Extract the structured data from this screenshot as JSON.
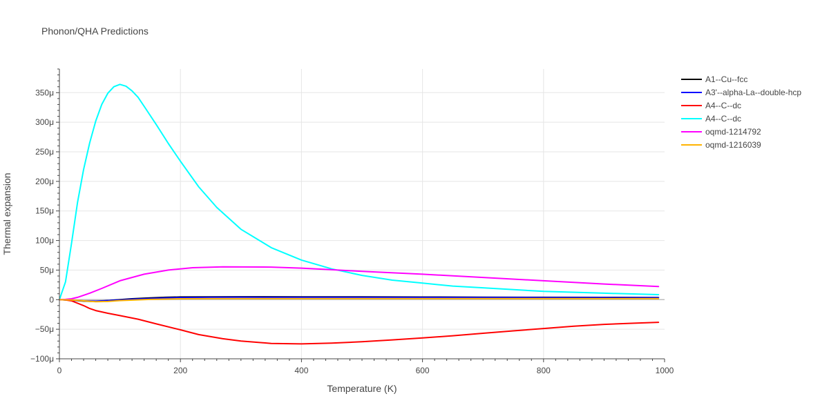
{
  "chart_data": {
    "type": "line",
    "title": "Phonon/QHA Predictions",
    "xlabel": "Temperature (K)",
    "ylabel": "Thermal expansion",
    "xlim": [
      0,
      1000
    ],
    "ylim": [
      -0.0001,
      0.00039
    ],
    "x_ticks": [
      0,
      200,
      400,
      600,
      800,
      1000
    ],
    "x_tick_labels": [
      "0",
      "200",
      "400",
      "600",
      "800",
      "1000"
    ],
    "y_ticks": [
      -0.0001,
      -5e-05,
      0,
      5e-05,
      0.0001,
      0.00015,
      0.0002,
      0.00025,
      0.0003,
      0.00035
    ],
    "y_tick_labels": [
      "−100μ",
      "−50μ",
      "0",
      "50μ",
      "100μ",
      "150μ",
      "200μ",
      "250μ",
      "300μ",
      "350μ"
    ],
    "grid": true,
    "legend_position": "top-right, outside plot area",
    "series": [
      {
        "name": "A1--Cu--fcc",
        "color": "#000000",
        "x": [
          0,
          20,
          40,
          60,
          80,
          100,
          120,
          150,
          175,
          200,
          250,
          300,
          400,
          500,
          600,
          700,
          800,
          900,
          990
        ],
        "y": [
          0,
          -1e-06,
          -2.5e-06,
          -3e-06,
          -1.5e-06,
          0,
          1.5e-06,
          3e-06,
          4e-06,
          4.5e-06,
          4.8e-06,
          4.9e-06,
          4.8e-06,
          4.6e-06,
          4.4e-06,
          4.2e-06,
          4e-06,
          3.8e-06,
          3.6e-06
        ]
      },
      {
        "name": "A3'--alpha-La--double-hcp",
        "color": "#0000ff",
        "x": [
          0,
          20,
          40,
          60,
          80,
          100,
          120,
          150,
          175,
          200,
          250,
          300,
          400,
          500,
          600,
          700,
          800,
          900,
          990
        ],
        "y": [
          0,
          -1e-06,
          -2e-06,
          -2.5e-06,
          -1.5e-06,
          -5e-07,
          8e-07,
          2e-06,
          3e-06,
          3.5e-06,
          4e-06,
          4.1e-06,
          4e-06,
          3.9e-06,
          3.8e-06,
          3.7e-06,
          3.6e-06,
          3.5e-06,
          3.4e-06
        ]
      },
      {
        "name": "A4--C--dc",
        "color": "#ff0000",
        "x": [
          0,
          10,
          20,
          30,
          40,
          50,
          60,
          80,
          100,
          130,
          160,
          200,
          230,
          270,
          300,
          350,
          400,
          450,
          500,
          550,
          600,
          650,
          700,
          750,
          800,
          850,
          900,
          950,
          990
        ],
        "y": [
          0,
          -5e-07,
          -2e-06,
          -6e-06,
          -1e-05,
          -1.5e-05,
          -1.85e-05,
          -2.3e-05,
          -2.7e-05,
          -3.3e-05,
          -4.1e-05,
          -5.1e-05,
          -5.9e-05,
          -6.6e-05,
          -7e-05,
          -7.4e-05,
          -7.48e-05,
          -7.35e-05,
          -7.12e-05,
          -6.8e-05,
          -6.48e-05,
          -6.1e-05,
          -5.68e-05,
          -5.28e-05,
          -4.88e-05,
          -4.48e-05,
          -4.18e-05,
          -3.98e-05,
          -3.83e-05
        ]
      },
      {
        "name": "A4--C--dc",
        "color": "#00ffff",
        "x": [
          0,
          10,
          20,
          30,
          40,
          50,
          60,
          70,
          80,
          90,
          100,
          110,
          120,
          130,
          140,
          160,
          180,
          200,
          230,
          260,
          300,
          350,
          400,
          450,
          500,
          550,
          600,
          650,
          700,
          800,
          900,
          990
        ],
        "y": [
          0,
          3e-05,
          9.5e-05,
          0.000165,
          0.00022,
          0.000265,
          0.000302,
          0.00033,
          0.000349,
          0.00036,
          0.000364,
          0.000361,
          0.000353,
          0.000342,
          0.000327,
          0.000296,
          0.000264,
          0.000234,
          0.000191,
          0.000156,
          0.000119,
          8.8e-05,
          6.7e-05,
          5.2e-05,
          4.1e-05,
          3.3e-05,
          2.8e-05,
          2.3e-05,
          2e-05,
          1.4e-05,
          1.1e-05,
          8.5e-06
        ]
      },
      {
        "name": "oqmd-1214792",
        "color": "#ff00ff",
        "x": [
          0,
          10,
          20,
          30,
          50,
          70,
          100,
          140,
          180,
          220,
          270,
          350,
          400,
          450,
          500,
          600,
          700,
          800,
          900,
          990
        ],
        "y": [
          0,
          5e-07,
          1.5e-06,
          4e-06,
          1.1e-05,
          1.9e-05,
          3.2e-05,
          4.3e-05,
          5e-05,
          5.4e-05,
          5.55e-05,
          5.5e-05,
          5.33e-05,
          5.06e-05,
          4.78e-05,
          4.3e-05,
          3.75e-05,
          3.2e-05,
          2.65e-05,
          2.22e-05
        ]
      },
      {
        "name": "oqmd-1216039",
        "color": "#ffb300",
        "x": [
          0,
          20,
          40,
          60,
          80,
          100,
          150,
          200,
          250,
          300,
          400,
          500,
          600,
          700,
          800,
          900,
          990
        ],
        "y": [
          0,
          -5e-07,
          -2e-06,
          -3.5e-06,
          -3e-06,
          -1.5e-06,
          5e-07,
          1.5e-06,
          1.8e-06,
          1.9e-06,
          1.9e-06,
          1.9e-06,
          1.9e-06,
          1.9e-06,
          1.9e-06,
          1.9e-06,
          1.9e-06
        ]
      }
    ]
  }
}
